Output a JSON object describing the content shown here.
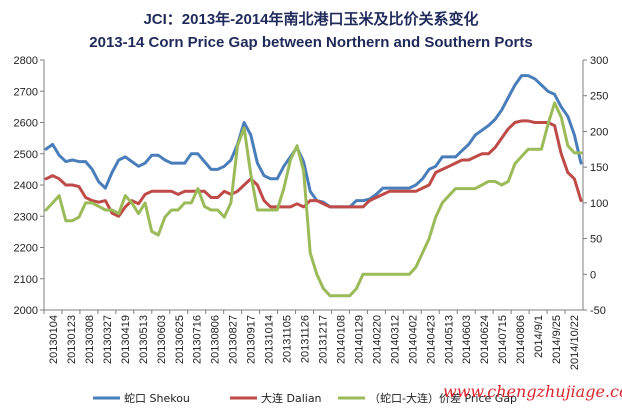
{
  "chart_data": {
    "type": "line",
    "title": "JCI：2013年-2014年南北港口玉米及比价关系变化",
    "subtitle": "2013-14 Corn Price Gap between Northern and Southern Ports",
    "x_tick_labels": [
      "20130104",
      "20130123",
      "20130308",
      "20130327",
      "20130419",
      "20130513",
      "20130603",
      "20130625",
      "20130716",
      "20130806",
      "20130827",
      "20130917",
      "20131014",
      "20131105",
      "20131126",
      "20131217",
      "20140108",
      "20140129",
      "20140220",
      "20140312",
      "20140402",
      "20140423",
      "20140513",
      "20140603",
      "20140624",
      "20140715",
      "20140806",
      "2014/9/1",
      "2014/9/25",
      "2014/10/22"
    ],
    "y_left": {
      "ticks": [
        2000,
        2100,
        2200,
        2300,
        2400,
        2500,
        2600,
        2700,
        2800
      ],
      "min": 2000,
      "max": 2800
    },
    "y_right": {
      "ticks": [
        -50,
        0,
        50,
        100,
        150,
        200,
        250,
        300
      ],
      "min": -50,
      "max": 300
    },
    "series": [
      {
        "name": "蛇口 Shekou",
        "axis": "left",
        "color": "#4a7ebb",
        "values": [
          2515,
          2530,
          2495,
          2475,
          2480,
          2475,
          2475,
          2450,
          2410,
          2390,
          2440,
          2480,
          2490,
          2475,
          2460,
          2470,
          2495,
          2495,
          2480,
          2470,
          2470,
          2470,
          2500,
          2500,
          2475,
          2450,
          2450,
          2460,
          2480,
          2530,
          2600,
          2560,
          2470,
          2430,
          2420,
          2420,
          2460,
          2490,
          2520,
          2475,
          2380,
          2350,
          2345,
          2330,
          2330,
          2330,
          2330,
          2350,
          2350,
          2355,
          2370,
          2390,
          2390,
          2390,
          2390,
          2390,
          2400,
          2420,
          2450,
          2460,
          2490,
          2490,
          2490,
          2510,
          2530,
          2560,
          2575,
          2590,
          2610,
          2640,
          2680,
          2720,
          2750,
          2750,
          2740,
          2720,
          2700,
          2690,
          2650,
          2620,
          2560,
          2470
        ]
      },
      {
        "name": "大连 Dalian",
        "axis": "left",
        "color": "#be4b48",
        "values": [
          2420,
          2430,
          2420,
          2400,
          2400,
          2395,
          2360,
          2350,
          2345,
          2350,
          2310,
          2300,
          2330,
          2350,
          2340,
          2370,
          2380,
          2380,
          2380,
          2380,
          2370,
          2380,
          2380,
          2380,
          2380,
          2360,
          2360,
          2380,
          2370,
          2380,
          2400,
          2420,
          2400,
          2350,
          2330,
          2330,
          2330,
          2330,
          2340,
          2330,
          2350,
          2350,
          2340,
          2330,
          2330,
          2330,
          2330,
          2330,
          2330,
          2350,
          2360,
          2370,
          2380,
          2380,
          2380,
          2380,
          2380,
          2390,
          2400,
          2440,
          2450,
          2460,
          2470,
          2480,
          2480,
          2490,
          2500,
          2500,
          2520,
          2550,
          2580,
          2600,
          2605,
          2605,
          2600,
          2600,
          2600,
          2590,
          2500,
          2440,
          2420,
          2350
        ]
      },
      {
        "name": "（蛇口-大连）价差 Price Gap",
        "axis": "right",
        "color": "#9bbb59",
        "values": [
          90,
          100,
          110,
          75,
          75,
          80,
          100,
          100,
          95,
          90,
          90,
          85,
          110,
          100,
          85,
          100,
          60,
          55,
          80,
          90,
          90,
          100,
          100,
          120,
          95,
          90,
          90,
          80,
          100,
          180,
          205,
          140,
          90,
          90,
          90,
          90,
          120,
          160,
          180,
          145,
          30,
          0,
          -20,
          -30,
          -30,
          -30,
          -30,
          -20,
          0,
          0,
          0,
          0,
          0,
          0,
          0,
          0,
          10,
          30,
          50,
          80,
          100,
          110,
          120,
          120,
          120,
          120,
          125,
          130,
          130,
          125,
          130,
          155,
          165,
          175,
          175,
          175,
          210,
          240,
          220,
          180,
          170,
          170
        ]
      }
    ],
    "legend": {
      "position": "bottom"
    },
    "grid": false
  },
  "legend_entries": [
    "蛇口 Shekou",
    "大连 Dalian",
    "（蛇口-大连）价差 Price Gap"
  ],
  "watermark": "www.chengzhujiage.com",
  "colors": {
    "title": "#1f2a5a",
    "axis": "#7f7f7f",
    "text": "#222222",
    "watermark": "#d9262c"
  }
}
